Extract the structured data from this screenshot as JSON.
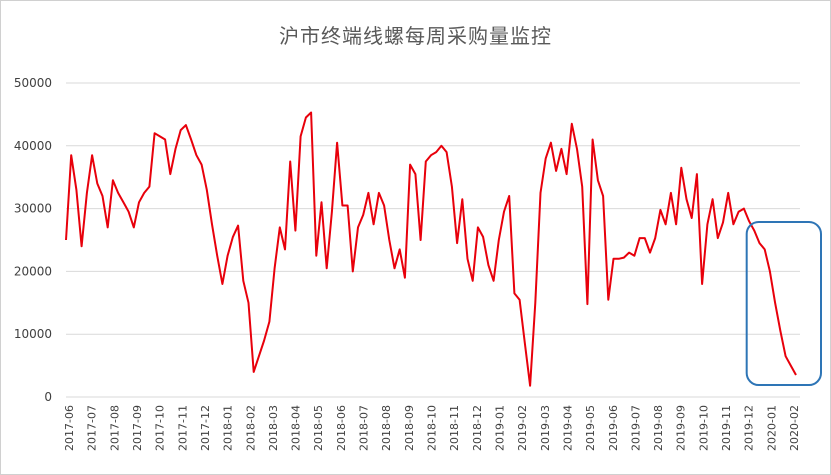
{
  "chart_data": {
    "type": "line",
    "title": "沪市终端线螺每周采购量监控",
    "xlabel": "",
    "ylabel": "",
    "ylim": [
      0,
      50000
    ],
    "y_ticks": [
      0,
      10000,
      20000,
      30000,
      40000,
      50000
    ],
    "x_tick_labels": [
      "2017-06",
      "2017-07",
      "2017-08",
      "2017-09",
      "2017-10",
      "2017-11",
      "2017-12",
      "2018-01",
      "2018-02",
      "2018-03",
      "2018-04",
      "2018-05",
      "2018-06",
      "2018-07",
      "2018-08",
      "2018-09",
      "2018-10",
      "2018-11",
      "2018-12",
      "2019-01",
      "2019-02",
      "2019-03",
      "2019-04",
      "2019-05",
      "2019-06",
      "2019-07",
      "2019-08",
      "2019-09",
      "2019-10",
      "2019-11",
      "2019-12",
      "2020-01",
      "2020-02"
    ],
    "grid": "horizontal",
    "line_color": "#e8000b",
    "highlight_color": "#2e75b6",
    "highlight_range": [
      "2019-12",
      "2020-02"
    ],
    "series": [
      {
        "values": [
          25000,
          38500,
          33000,
          24000,
          32500,
          38500,
          34000,
          32000,
          27000,
          34500,
          32500,
          31000,
          29500,
          27000,
          31000,
          32500,
          33500,
          42000,
          41500,
          41000,
          35500,
          39500,
          42500,
          43300,
          41000,
          38500,
          37000,
          33000,
          27500,
          22500,
          18000,
          22500,
          25500,
          27300,
          18500,
          15000,
          4000,
          6500,
          9000,
          12000,
          20500,
          27000,
          23500,
          37500,
          26500,
          41500,
          44500,
          45300,
          22500,
          31000,
          20500,
          29500,
          40500,
          30500,
          30500,
          20000,
          27000,
          29000,
          32500,
          27500,
          32500,
          30500,
          25000,
          20500,
          23500,
          19000,
          37000,
          35500,
          25000,
          37500,
          38500,
          39000,
          40000,
          39000,
          33500,
          24500,
          31500,
          22000,
          18500,
          27000,
          25500,
          21000,
          18500,
          25000,
          29500,
          32000,
          16500,
          15500,
          8500,
          1800,
          15000,
          32500,
          38000,
          40500,
          36000,
          39500,
          35500,
          43500,
          39500,
          33500,
          14800,
          41000,
          34500,
          32000,
          15500,
          22000,
          22000,
          22200,
          23000,
          22500,
          25300,
          25300,
          23000,
          25300,
          29800,
          27500,
          32500,
          27500,
          36500,
          31500,
          28500,
          35500,
          18000,
          27500,
          31500,
          25300,
          27800,
          32500,
          27500,
          29500,
          30000,
          28000,
          26500,
          24500,
          23500,
          20000,
          15000,
          10500,
          6500,
          5000,
          3500
        ]
      }
    ]
  }
}
